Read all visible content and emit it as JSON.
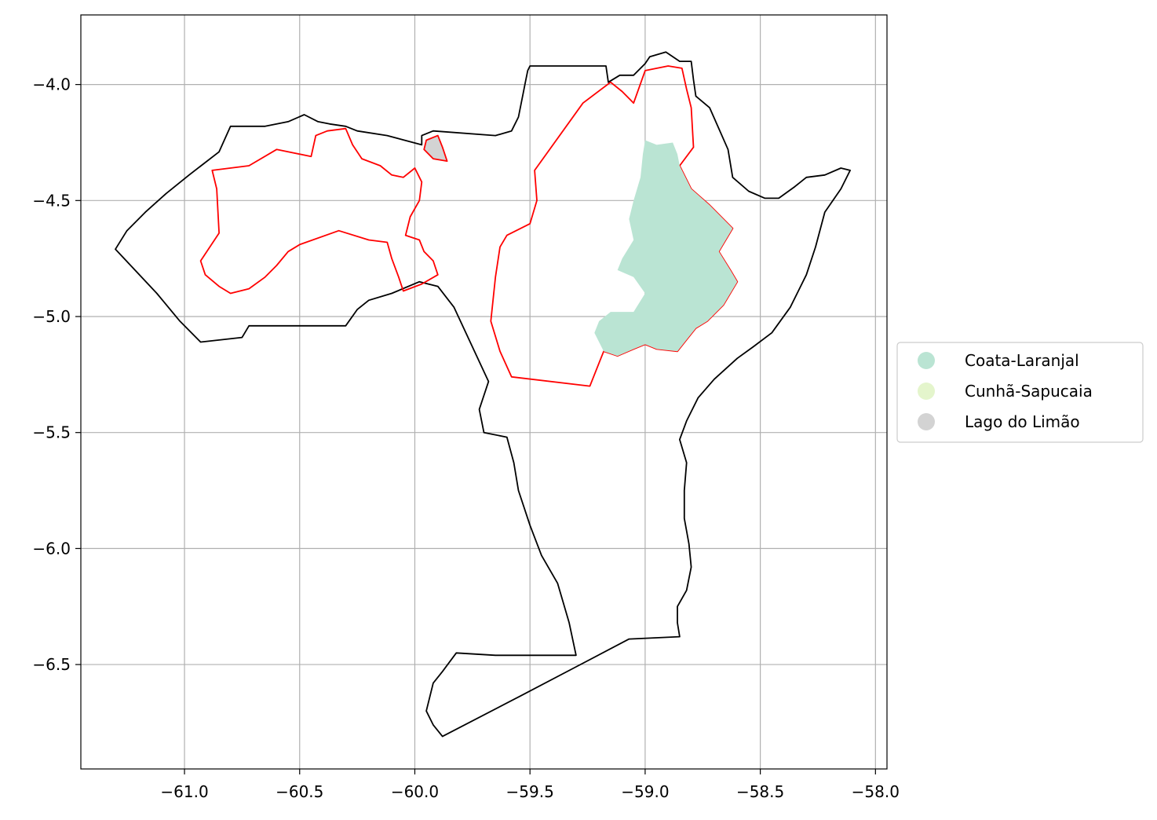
{
  "chart_data": {
    "type": "map",
    "title": "",
    "xlabel": "",
    "ylabel": "",
    "xlim": [
      -61.45,
      -57.95
    ],
    "ylim": [
      -6.95,
      -3.7
    ],
    "grid": true,
    "x_ticks": [
      {
        "value": -61.0,
        "label": "−61.0"
      },
      {
        "value": -60.5,
        "label": "−60.5"
      },
      {
        "value": -60.0,
        "label": "−60.0"
      },
      {
        "value": -59.5,
        "label": "−59.5"
      },
      {
        "value": -59.0,
        "label": "−59.0"
      },
      {
        "value": -58.5,
        "label": "−58.5"
      },
      {
        "value": -58.0,
        "label": "−58.0"
      }
    ],
    "y_ticks": [
      {
        "value": -4.0,
        "label": "−4.0"
      },
      {
        "value": -4.5,
        "label": "−4.5"
      },
      {
        "value": -5.0,
        "label": "−5.0"
      },
      {
        "value": -5.5,
        "label": "−5.5"
      },
      {
        "value": -6.0,
        "label": "−6.0"
      },
      {
        "value": -6.5,
        "label": "−6.5"
      }
    ],
    "legend": {
      "position": "center-right",
      "entries": [
        {
          "label": "Coata-Laranjal",
          "color": "#bae4d3"
        },
        {
          "label": "Cunhã-Sapucaia",
          "color": "#e4f5cc"
        },
        {
          "label": "Lago do Limão",
          "color": "#d3d3d3"
        }
      ]
    },
    "layers": [
      {
        "name": "outer-boundary",
        "stroke": "#000000",
        "fill": "none",
        "coordinates": [
          [
            -61.3,
            -4.71
          ],
          [
            -61.25,
            -4.63
          ],
          [
            -61.17,
            -4.55
          ],
          [
            -61.08,
            -4.47
          ],
          [
            -60.98,
            -4.39
          ],
          [
            -60.85,
            -4.29
          ],
          [
            -60.8,
            -4.18
          ],
          [
            -60.75,
            -4.18
          ],
          [
            -60.65,
            -4.18
          ],
          [
            -60.55,
            -4.16
          ],
          [
            -60.48,
            -4.13
          ],
          [
            -60.42,
            -4.16
          ],
          [
            -60.37,
            -4.17
          ],
          [
            -60.3,
            -4.18
          ],
          [
            -60.25,
            -4.2
          ],
          [
            -60.12,
            -4.22
          ],
          [
            -59.97,
            -4.26
          ],
          [
            -59.97,
            -4.22
          ],
          [
            -59.92,
            -4.2
          ],
          [
            -59.65,
            -4.22
          ],
          [
            -59.58,
            -4.2
          ],
          [
            -59.55,
            -4.14
          ],
          [
            -59.53,
            -4.04
          ],
          [
            -59.52,
            -3.99
          ],
          [
            -59.51,
            -3.94
          ],
          [
            -59.5,
            -3.92
          ],
          [
            -59.17,
            -3.92
          ],
          [
            -59.16,
            -3.99
          ],
          [
            -59.11,
            -3.96
          ],
          [
            -59.05,
            -3.96
          ],
          [
            -59.0,
            -3.91
          ],
          [
            -58.98,
            -3.88
          ],
          [
            -58.91,
            -3.86
          ],
          [
            -58.85,
            -3.9
          ],
          [
            -58.8,
            -3.9
          ],
          [
            -58.79,
            -3.98
          ],
          [
            -58.78,
            -4.05
          ],
          [
            -58.72,
            -4.1
          ],
          [
            -58.68,
            -4.19
          ],
          [
            -58.64,
            -4.28
          ],
          [
            -58.62,
            -4.4
          ],
          [
            -58.55,
            -4.46
          ],
          [
            -58.48,
            -4.49
          ],
          [
            -58.42,
            -4.49
          ],
          [
            -58.35,
            -4.44
          ],
          [
            -58.3,
            -4.4
          ],
          [
            -58.22,
            -4.39
          ],
          [
            -58.15,
            -4.36
          ],
          [
            -58.11,
            -4.37
          ],
          [
            -58.15,
            -4.45
          ],
          [
            -58.22,
            -4.55
          ],
          [
            -58.26,
            -4.7
          ],
          [
            -58.3,
            -4.82
          ],
          [
            -58.37,
            -4.96
          ],
          [
            -58.45,
            -5.07
          ],
          [
            -58.53,
            -5.13
          ],
          [
            -58.6,
            -5.18
          ],
          [
            -58.7,
            -5.27
          ],
          [
            -58.77,
            -5.35
          ],
          [
            -58.82,
            -5.45
          ],
          [
            -58.85,
            -5.53
          ],
          [
            -58.82,
            -5.63
          ],
          [
            -58.83,
            -5.75
          ],
          [
            -58.83,
            -5.87
          ],
          [
            -58.81,
            -5.98
          ],
          [
            -58.8,
            -6.08
          ],
          [
            -58.82,
            -6.18
          ],
          [
            -58.86,
            -6.25
          ],
          [
            -58.86,
            -6.32
          ],
          [
            -58.85,
            -6.38
          ],
          [
            -59.07,
            -6.39
          ],
          [
            -59.3,
            -6.51
          ],
          [
            -59.55,
            -6.64
          ],
          [
            -59.88,
            -6.81
          ],
          [
            -59.92,
            -6.76
          ],
          [
            -59.95,
            -6.7
          ],
          [
            -59.92,
            -6.58
          ],
          [
            -59.88,
            -6.53
          ],
          [
            -59.82,
            -6.45
          ],
          [
            -59.65,
            -6.46
          ],
          [
            -59.3,
            -6.46
          ],
          [
            -59.33,
            -6.32
          ],
          [
            -59.38,
            -6.15
          ],
          [
            -59.45,
            -6.03
          ],
          [
            -59.5,
            -5.9
          ],
          [
            -59.55,
            -5.75
          ],
          [
            -59.57,
            -5.63
          ],
          [
            -59.6,
            -5.52
          ],
          [
            -59.7,
            -5.5
          ],
          [
            -59.72,
            -5.4
          ],
          [
            -59.68,
            -5.28
          ],
          [
            -59.83,
            -4.96
          ],
          [
            -59.9,
            -4.87
          ],
          [
            -59.98,
            -4.85
          ],
          [
            -60.1,
            -4.9
          ],
          [
            -60.2,
            -4.93
          ],
          [
            -60.25,
            -4.97
          ],
          [
            -60.3,
            -5.04
          ],
          [
            -60.72,
            -5.04
          ],
          [
            -60.75,
            -5.09
          ],
          [
            -60.93,
            -5.11
          ],
          [
            -61.02,
            -5.02
          ],
          [
            -61.12,
            -4.9
          ],
          [
            -61.3,
            -4.71
          ]
        ]
      },
      {
        "name": "west-territory-boundary",
        "stroke": "#ff0000",
        "fill": "none",
        "coordinates": [
          [
            -60.88,
            -4.37
          ],
          [
            -60.72,
            -4.35
          ],
          [
            -60.6,
            -4.28
          ],
          [
            -60.45,
            -4.31
          ],
          [
            -60.43,
            -4.22
          ],
          [
            -60.38,
            -4.2
          ],
          [
            -60.3,
            -4.19
          ],
          [
            -60.27,
            -4.26
          ],
          [
            -60.23,
            -4.32
          ],
          [
            -60.15,
            -4.35
          ],
          [
            -60.1,
            -4.39
          ],
          [
            -60.05,
            -4.4
          ],
          [
            -60.0,
            -4.36
          ],
          [
            -59.97,
            -4.42
          ],
          [
            -59.98,
            -4.5
          ],
          [
            -60.02,
            -4.57
          ],
          [
            -60.04,
            -4.65
          ],
          [
            -59.98,
            -4.67
          ],
          [
            -59.96,
            -4.72
          ],
          [
            -59.92,
            -4.76
          ],
          [
            -59.9,
            -4.82
          ],
          [
            -59.97,
            -4.86
          ],
          [
            -60.05,
            -4.89
          ],
          [
            -60.07,
            -4.83
          ],
          [
            -60.1,
            -4.75
          ],
          [
            -60.12,
            -4.68
          ],
          [
            -60.2,
            -4.67
          ],
          [
            -60.33,
            -4.63
          ],
          [
            -60.5,
            -4.69
          ],
          [
            -60.55,
            -4.72
          ],
          [
            -60.6,
            -4.78
          ],
          [
            -60.65,
            -4.83
          ],
          [
            -60.72,
            -4.88
          ],
          [
            -60.8,
            -4.9
          ],
          [
            -60.85,
            -4.87
          ],
          [
            -60.91,
            -4.82
          ],
          [
            -60.93,
            -4.76
          ],
          [
            -60.85,
            -4.64
          ],
          [
            -60.86,
            -4.45
          ],
          [
            -60.88,
            -4.37
          ]
        ]
      },
      {
        "name": "east-territory-boundary",
        "stroke": "#ff0000",
        "fill": "none",
        "coordinates": [
          [
            -59.48,
            -4.37
          ],
          [
            -59.27,
            -4.08
          ],
          [
            -59.15,
            -3.99
          ],
          [
            -59.1,
            -4.03
          ],
          [
            -59.05,
            -4.08
          ],
          [
            -59.0,
            -3.94
          ],
          [
            -58.9,
            -3.92
          ],
          [
            -58.84,
            -3.93
          ],
          [
            -58.82,
            -4.02
          ],
          [
            -58.8,
            -4.1
          ],
          [
            -58.79,
            -4.27
          ],
          [
            -58.85,
            -4.35
          ],
          [
            -58.8,
            -4.45
          ],
          [
            -58.72,
            -4.52
          ],
          [
            -58.62,
            -4.62
          ],
          [
            -58.68,
            -4.72
          ],
          [
            -58.63,
            -4.8
          ],
          [
            -58.6,
            -4.85
          ],
          [
            -58.66,
            -4.95
          ],
          [
            -58.73,
            -5.02
          ],
          [
            -58.78,
            -5.05
          ],
          [
            -58.82,
            -5.1
          ],
          [
            -58.86,
            -5.15
          ],
          [
            -58.95,
            -5.14
          ],
          [
            -59.0,
            -5.12
          ],
          [
            -59.05,
            -5.14
          ],
          [
            -59.12,
            -5.17
          ],
          [
            -59.18,
            -5.15
          ],
          [
            -59.2,
            -5.2
          ],
          [
            -59.24,
            -5.3
          ],
          [
            -59.58,
            -5.26
          ],
          [
            -59.63,
            -5.15
          ],
          [
            -59.67,
            -5.02
          ],
          [
            -59.65,
            -4.83
          ],
          [
            -59.63,
            -4.7
          ],
          [
            -59.6,
            -4.65
          ],
          [
            -59.5,
            -4.6
          ],
          [
            -59.47,
            -4.5
          ],
          [
            -59.48,
            -4.37
          ]
        ]
      },
      {
        "name": "coata-laranjal-area",
        "stroke": "none",
        "fill": "#bae4d3",
        "coordinates": [
          [
            -59.0,
            -4.24
          ],
          [
            -58.95,
            -4.26
          ],
          [
            -58.88,
            -4.25
          ],
          [
            -58.86,
            -4.3
          ],
          [
            -58.85,
            -4.35
          ],
          [
            -58.8,
            -4.45
          ],
          [
            -58.72,
            -4.52
          ],
          [
            -58.62,
            -4.62
          ],
          [
            -58.68,
            -4.72
          ],
          [
            -58.63,
            -4.8
          ],
          [
            -58.6,
            -4.85
          ],
          [
            -58.66,
            -4.95
          ],
          [
            -58.73,
            -5.02
          ],
          [
            -58.78,
            -5.05
          ],
          [
            -58.82,
            -5.1
          ],
          [
            -58.86,
            -5.15
          ],
          [
            -58.95,
            -5.14
          ],
          [
            -59.0,
            -5.12
          ],
          [
            -59.05,
            -5.14
          ],
          [
            -59.12,
            -5.17
          ],
          [
            -59.18,
            -5.15
          ],
          [
            -59.22,
            -5.07
          ],
          [
            -59.2,
            -5.02
          ],
          [
            -59.15,
            -4.98
          ],
          [
            -59.05,
            -4.98
          ],
          [
            -59.0,
            -4.9
          ],
          [
            -59.05,
            -4.83
          ],
          [
            -59.12,
            -4.8
          ],
          [
            -59.1,
            -4.75
          ],
          [
            -59.05,
            -4.67
          ],
          [
            -59.07,
            -4.58
          ],
          [
            -59.05,
            -4.5
          ],
          [
            -59.02,
            -4.4
          ],
          [
            -59.01,
            -4.3
          ],
          [
            -59.0,
            -4.24
          ]
        ]
      },
      {
        "name": "lago-do-limao-area",
        "stroke": "#ff0000",
        "fill": "#d3d3d3",
        "coordinates": [
          [
            -59.95,
            -4.24
          ],
          [
            -59.9,
            -4.22
          ],
          [
            -59.88,
            -4.27
          ],
          [
            -59.86,
            -4.33
          ],
          [
            -59.92,
            -4.32
          ],
          [
            -59.96,
            -4.28
          ],
          [
            -59.95,
            -4.24
          ]
        ]
      }
    ]
  }
}
